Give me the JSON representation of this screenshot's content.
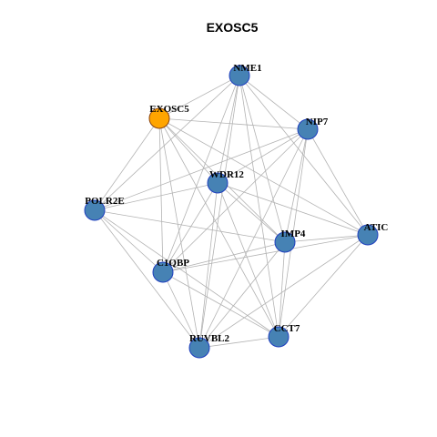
{
  "title": "EXOSC5",
  "colors": {
    "background": "#ffffff",
    "edge": "#b3b3b3",
    "node_default_fill": "#4682b4",
    "node_default_stroke": "#1f3fbf",
    "node_focus_fill": "#ffa500",
    "node_focus_stroke": "#8b4513"
  },
  "nodes": [
    {
      "id": "NME1",
      "label": "NME1",
      "focus": false
    },
    {
      "id": "EXOSC5",
      "label": "EXOSC5",
      "focus": true
    },
    {
      "id": "NIP7",
      "label": "NIP7",
      "focus": false
    },
    {
      "id": "WDR12",
      "label": "WDR12",
      "focus": false
    },
    {
      "id": "POLR2E",
      "label": "POLR2E",
      "focus": false
    },
    {
      "id": "ATIC",
      "label": "ATIC",
      "focus": false
    },
    {
      "id": "IMP4",
      "label": "IMP4",
      "focus": false
    },
    {
      "id": "C1QBP",
      "label": "C1QBP",
      "focus": false
    },
    {
      "id": "CCT7",
      "label": "CCT7",
      "focus": false
    },
    {
      "id": "RUVBL2",
      "label": "RUVBL2",
      "focus": false
    }
  ],
  "edges": [
    [
      "NME1",
      "EXOSC5"
    ],
    [
      "NME1",
      "NIP7"
    ],
    [
      "NME1",
      "WDR12"
    ],
    [
      "NME1",
      "POLR2E"
    ],
    [
      "NME1",
      "ATIC"
    ],
    [
      "NME1",
      "IMP4"
    ],
    [
      "NME1",
      "C1QBP"
    ],
    [
      "NME1",
      "CCT7"
    ],
    [
      "NME1",
      "RUVBL2"
    ],
    [
      "EXOSC5",
      "NIP7"
    ],
    [
      "EXOSC5",
      "WDR12"
    ],
    [
      "EXOSC5",
      "POLR2E"
    ],
    [
      "EXOSC5",
      "ATIC"
    ],
    [
      "EXOSC5",
      "IMP4"
    ],
    [
      "EXOSC5",
      "C1QBP"
    ],
    [
      "EXOSC5",
      "CCT7"
    ],
    [
      "EXOSC5",
      "RUVBL2"
    ],
    [
      "NIP7",
      "WDR12"
    ],
    [
      "NIP7",
      "POLR2E"
    ],
    [
      "NIP7",
      "ATIC"
    ],
    [
      "NIP7",
      "IMP4"
    ],
    [
      "NIP7",
      "C1QBP"
    ],
    [
      "NIP7",
      "CCT7"
    ],
    [
      "NIP7",
      "RUVBL2"
    ],
    [
      "WDR12",
      "POLR2E"
    ],
    [
      "WDR12",
      "ATIC"
    ],
    [
      "WDR12",
      "IMP4"
    ],
    [
      "WDR12",
      "C1QBP"
    ],
    [
      "WDR12",
      "CCT7"
    ],
    [
      "WDR12",
      "RUVBL2"
    ],
    [
      "POLR2E",
      "IMP4"
    ],
    [
      "POLR2E",
      "C1QBP"
    ],
    [
      "POLR2E",
      "CCT7"
    ],
    [
      "POLR2E",
      "RUVBL2"
    ],
    [
      "ATIC",
      "IMP4"
    ],
    [
      "ATIC",
      "C1QBP"
    ],
    [
      "ATIC",
      "CCT7"
    ],
    [
      "ATIC",
      "RUVBL2"
    ],
    [
      "IMP4",
      "C1QBP"
    ],
    [
      "IMP4",
      "CCT7"
    ],
    [
      "IMP4",
      "RUVBL2"
    ],
    [
      "C1QBP",
      "CCT7"
    ],
    [
      "C1QBP",
      "RUVBL2"
    ],
    [
      "CCT7",
      "RUVBL2"
    ]
  ]
}
